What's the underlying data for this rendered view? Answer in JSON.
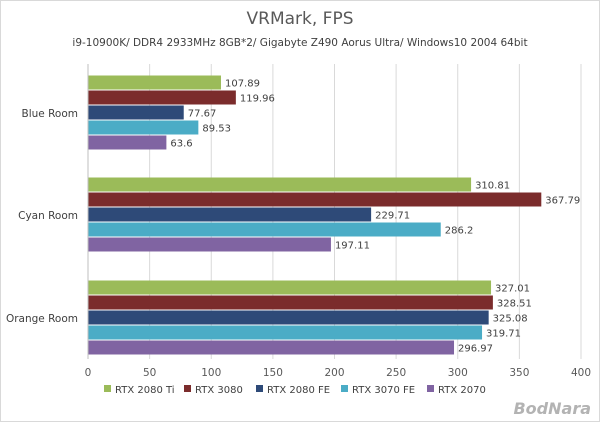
{
  "chart_data": {
    "type": "bar",
    "orientation": "horizontal",
    "title": "VRMark, FPS",
    "subtitle": "i9-10900K/ DDR4 2933MHz 8GB*2/ Gigabyte Z490 Aorus Ultra/ Windows10 2004 64bit",
    "categories": [
      "Blue Room",
      "Cyan Room",
      "Orange Room"
    ],
    "series": [
      {
        "name": "RTX 2080 Ti",
        "color": "#9bbb59",
        "values": [
          107.89,
          310.81,
          327.01
        ]
      },
      {
        "name": "RTX 3080",
        "color": "#7b2c2c",
        "values": [
          119.96,
          367.79,
          328.51
        ]
      },
      {
        "name": "RTX 2080 FE",
        "color": "#2e4a78",
        "values": [
          77.67,
          229.71,
          325.08
        ]
      },
      {
        "name": "RTX 3070 FE",
        "color": "#4bacc6",
        "values": [
          89.53,
          286.2,
          319.71
        ]
      },
      {
        "name": "RTX 2070",
        "color": "#8064a2",
        "values": [
          63.6,
          197.11,
          296.97
        ]
      }
    ],
    "xlim": [
      0,
      400
    ],
    "xticks": [
      0,
      50,
      100,
      150,
      200,
      250,
      300,
      350,
      400
    ],
    "grid": true,
    "legend": "bottom",
    "data_labels": true
  },
  "watermark": "BodNara"
}
